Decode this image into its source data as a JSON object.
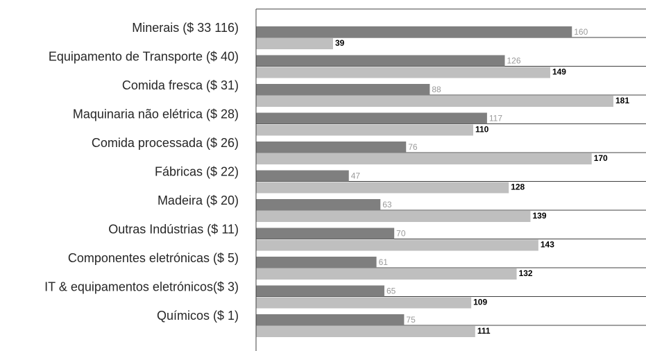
{
  "chart_data": {
    "type": "bar",
    "orientation": "horizontal",
    "categories": [
      "Minerais ($ 33 116)",
      "Equipamento de Transporte ($ 40)",
      "Comida fresca  ($ 31)",
      "Maquinaria não elétrica ($ 28)",
      "Comida processada ($ 26)",
      "Fábricas ($ 22)",
      "Madeira ($ 20)",
      "Outras Indústrias ($ 11)",
      "Componentes eletrónicas ($ 5)",
      "IT & equipamentos eletrónicos($ 3)",
      "Químicos ($ 1)"
    ],
    "series": [
      {
        "values": [
          160,
          126,
          88,
          117,
          76,
          47,
          63,
          70,
          61,
          65,
          75
        ],
        "color": "#7f7f7f"
      },
      {
        "values": [
          39,
          149,
          181,
          110,
          170,
          128,
          139,
          143,
          132,
          109,
          111
        ],
        "color": "#bfbfbf"
      }
    ],
    "xlim": [
      0,
      185
    ],
    "grid": false,
    "legend": "none"
  }
}
